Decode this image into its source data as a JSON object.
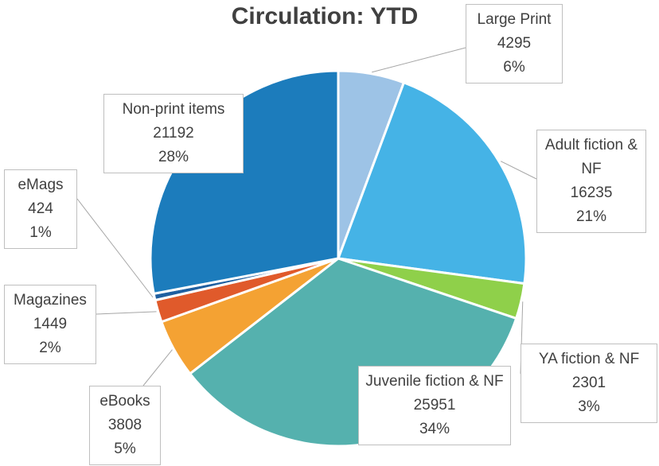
{
  "chart_data": {
    "type": "pie",
    "title": "Circulation: YTD",
    "categories": [
      "Large Print",
      "Adult fiction & NF",
      "YA fiction & NF",
      "Juvenile fiction & NF",
      "eBooks",
      "Magazines",
      "eMags",
      "Non-print items"
    ],
    "values": [
      4295,
      16235,
      2301,
      25951,
      3808,
      1449,
      424,
      21192
    ],
    "percent_labels": [
      "6%",
      "21%",
      "3%",
      "34%",
      "5%",
      "2%",
      "1%",
      "28%"
    ],
    "colors": [
      "#9dc3e6",
      "#45b3e6",
      "#8fd04a",
      "#55b1ae",
      "#f4a233",
      "#e05a2b",
      "#1f5fa0",
      "#1c7cbc"
    ]
  }
}
